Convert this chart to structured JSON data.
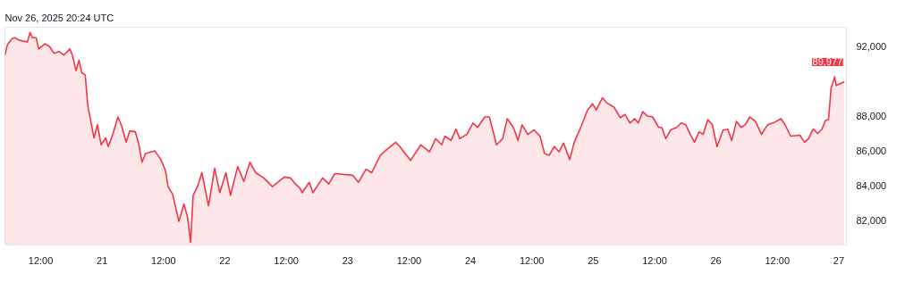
{
  "chart_data": {
    "type": "area",
    "title": "Nov 26, 2025 20:24 UTC",
    "x": [
      "2025-11-20T05:00",
      "2025-11-20T05:30",
      "2025-11-20T06:24",
      "2025-11-20T06:54",
      "2025-11-20T07:48",
      "2025-11-20T09:24",
      "2025-11-20T09:54",
      "2025-11-20T10:24",
      "2025-11-20T11:06",
      "2025-11-20T11:36",
      "2025-11-20T12:48",
      "2025-11-20T13:42",
      "2025-11-20T14:36",
      "2025-11-20T15:36",
      "2025-11-20T16:30",
      "2025-11-20T17:42",
      "2025-11-20T18:12",
      "2025-11-20T18:54",
      "2025-11-20T19:30",
      "2025-11-20T20:00",
      "2025-11-20T20:42",
      "2025-11-20T21:12",
      "2025-11-20T22:24",
      "2025-11-20T23:06",
      "2025-11-20T23:48",
      "2025-11-21T00:42",
      "2025-11-21T01:12",
      "2025-11-21T02:06",
      "2025-11-21T03:06",
      "2025-11-21T03:48",
      "2025-11-21T04:42",
      "2025-11-21T05:24",
      "2025-11-21T06:30",
      "2025-11-21T07:12",
      "2025-11-21T07:48",
      "2025-11-21T08:30",
      "2025-11-21T10:18",
      "2025-11-21T11:30",
      "2025-11-21T12:24",
      "2025-11-21T12:54",
      "2025-11-21T13:48",
      "2025-11-21T15:00",
      "2025-11-21T16:00",
      "2025-11-21T16:42",
      "2025-11-21T17:18",
      "2025-11-21T17:48",
      "2025-11-21T18:42",
      "2025-11-21T19:30",
      "2025-11-21T20:48",
      "2025-11-21T22:00",
      "2025-11-21T23:00",
      "2025-11-22T00:12",
      "2025-11-22T01:06",
      "2025-11-22T02:30",
      "2025-11-22T03:42",
      "2025-11-22T04:54",
      "2025-11-22T06:00",
      "2025-11-22T07:36",
      "2025-11-22T09:18",
      "2025-11-22T11:36",
      "2025-11-22T12:48",
      "2025-11-22T13:48",
      "2025-11-22T14:42",
      "2025-11-22T15:06",
      "2025-11-22T16:30",
      "2025-11-22T17:12",
      "2025-11-22T19:06",
      "2025-11-22T20:18",
      "2025-11-22T21:30",
      "2025-11-23T01:00",
      "2025-11-23T02:06",
      "2025-11-23T03:36",
      "2025-11-23T04:42",
      "2025-11-23T06:24",
      "2025-11-23T07:18",
      "2025-11-23T09:24",
      "2025-11-23T10:36",
      "2025-11-23T12:18",
      "2025-11-23T14:18",
      "2025-11-23T16:00",
      "2025-11-23T17:12",
      "2025-11-23T18:24",
      "2025-11-23T19:00",
      "2025-11-23T20:12",
      "2025-11-23T21:12",
      "2025-11-23T21:54",
      "2025-11-23T23:18",
      "2025-11-24T00:30",
      "2025-11-24T01:24",
      "2025-11-24T02:48",
      "2025-11-24T03:42",
      "2025-11-24T05:06",
      "2025-11-24T06:18",
      "2025-11-24T07:12",
      "2025-11-24T08:24",
      "2025-11-24T09:18",
      "2025-11-24T10:06",
      "2025-11-24T11:12",
      "2025-11-24T12:24",
      "2025-11-24T13:36",
      "2025-11-24T14:30",
      "2025-11-24T15:24",
      "2025-11-24T16:24",
      "2025-11-24T17:18",
      "2025-11-24T18:12",
      "2025-11-24T19:24",
      "2025-11-24T20:18",
      "2025-11-24T21:42",
      "2025-11-24T22:54",
      "2025-11-24T23:54",
      "2025-11-25T00:36",
      "2025-11-25T01:48",
      "2025-11-25T02:42",
      "2025-11-25T04:06",
      "2025-11-25T05:18",
      "2025-11-25T06:12",
      "2025-11-25T07:12",
      "2025-11-25T08:06",
      "2025-11-25T08:48",
      "2025-11-25T09:42",
      "2025-11-25T10:36",
      "2025-11-25T11:36",
      "2025-11-25T12:48",
      "2025-11-25T13:24",
      "2025-11-25T14:12",
      "2025-11-25T15:06",
      "2025-11-25T16:18",
      "2025-11-25T17:12",
      "2025-11-25T18:06",
      "2025-11-25T18:54",
      "2025-11-25T19:48",
      "2025-11-25T20:42",
      "2025-11-25T21:30",
      "2025-11-25T22:24",
      "2025-11-25T23:18",
      "2025-11-26T00:12",
      "2025-11-26T01:24",
      "2025-11-26T02:18",
      "2025-11-26T03:06",
      "2025-11-26T04:00",
      "2025-11-26T04:54",
      "2025-11-26T05:42",
      "2025-11-26T06:36",
      "2025-11-26T07:42",
      "2025-11-26T08:54",
      "2025-11-26T10:06",
      "2025-11-26T11:30",
      "2025-11-26T12:42",
      "2025-11-26T13:36",
      "2025-11-26T14:36",
      "2025-11-26T16:24",
      "2025-11-26T17:18",
      "2025-11-26T18:06",
      "2025-11-26T19:00",
      "2025-11-26T19:54",
      "2025-11-26T20:42",
      "2025-11-26T21:24",
      "2025-11-26T22:00",
      "2025-11-26T22:30",
      "2025-11-26T23:12",
      "2025-11-26T23:30",
      "2025-11-27T00:12",
      "2025-11-27T01:06"
    ],
    "series": [
      {
        "color": "#f23645",
        "values": [
          91500,
          92100,
          92450,
          92500,
          92350,
          92250,
          92800,
          92500,
          92500,
          91850,
          92150,
          92000,
          91600,
          91700,
          91500,
          91850,
          91500,
          90600,
          91200,
          90500,
          90350,
          88600,
          86750,
          87500,
          86350,
          86750,
          86250,
          86950,
          87950,
          87450,
          86500,
          87150,
          87100,
          86350,
          85350,
          85850,
          86000,
          85500,
          84850,
          83950,
          83500,
          81950,
          82950,
          82200,
          80750,
          83450,
          84000,
          84750,
          82850,
          85000,
          83600,
          84750,
          83450,
          85100,
          84250,
          85350,
          84750,
          84450,
          83950,
          84500,
          84450,
          84100,
          83850,
          83600,
          84200,
          83600,
          84450,
          84100,
          84700,
          84600,
          84200,
          84950,
          84750,
          85750,
          86000,
          86500,
          86100,
          85450,
          86350,
          85950,
          86700,
          86350,
          86850,
          86600,
          87250,
          86700,
          86950,
          87600,
          87350,
          87950,
          87950,
          86350,
          86700,
          87850,
          87350,
          86600,
          87500,
          86950,
          87200,
          86850,
          85850,
          85750,
          86250,
          85950,
          86450,
          85500,
          86500,
          87450,
          88350,
          88700,
          88350,
          89050,
          88750,
          88500,
          87900,
          88100,
          87600,
          87850,
          87600,
          88250,
          88000,
          87950,
          87350,
          87350,
          86700,
          87200,
          87350,
          87600,
          87500,
          87000,
          86500,
          87100,
          86950,
          87800,
          87500,
          86250,
          87200,
          87250,
          86600,
          87700,
          87350,
          87500,
          87950,
          87700,
          86950,
          87500,
          87650,
          87850,
          87450,
          86850,
          86900,
          86500,
          86700,
          87250,
          87000,
          87250,
          87750,
          87800,
          89600,
          90250,
          89750,
          89850,
          89977
        ]
      }
    ],
    "xlim": [
      "2025-11-20T05:00",
      "2025-11-27T01:30"
    ],
    "ylim": [
      80600,
      93100
    ],
    "xticks": [
      {
        "value": "2025-11-20T12:00",
        "label": "12:00"
      },
      {
        "value": "2025-11-21",
        "label": "21"
      },
      {
        "value": "2025-11-21T12:00",
        "label": "12:00"
      },
      {
        "value": "2025-11-22",
        "label": "22"
      },
      {
        "value": "2025-11-22T12:00",
        "label": "12:00"
      },
      {
        "value": "2025-11-23",
        "label": "23"
      },
      {
        "value": "2025-11-23T12:00",
        "label": "12:00"
      },
      {
        "value": "2025-11-24",
        "label": "24"
      },
      {
        "value": "2025-11-24T12:00",
        "label": "12:00"
      },
      {
        "value": "2025-11-25",
        "label": "25"
      },
      {
        "value": "2025-11-25T12:00",
        "label": "12:00"
      },
      {
        "value": "2025-11-26",
        "label": "26"
      },
      {
        "value": "2025-11-26T12:00",
        "label": "12:00"
      },
      {
        "value": "2025-11-27",
        "label": "27"
      }
    ],
    "yticks": [
      {
        "value": 82000,
        "label": "82,000"
      },
      {
        "value": 84000,
        "label": "84,000"
      },
      {
        "value": 86000,
        "label": "86,000"
      },
      {
        "value": 88000,
        "label": "88,000"
      },
      {
        "value": 92000,
        "label": "92,000"
      }
    ],
    "annotations": [
      {
        "text": "89,977",
        "x": "2025-11-27T01:06",
        "y": 89977
      }
    ],
    "grid": false
  }
}
